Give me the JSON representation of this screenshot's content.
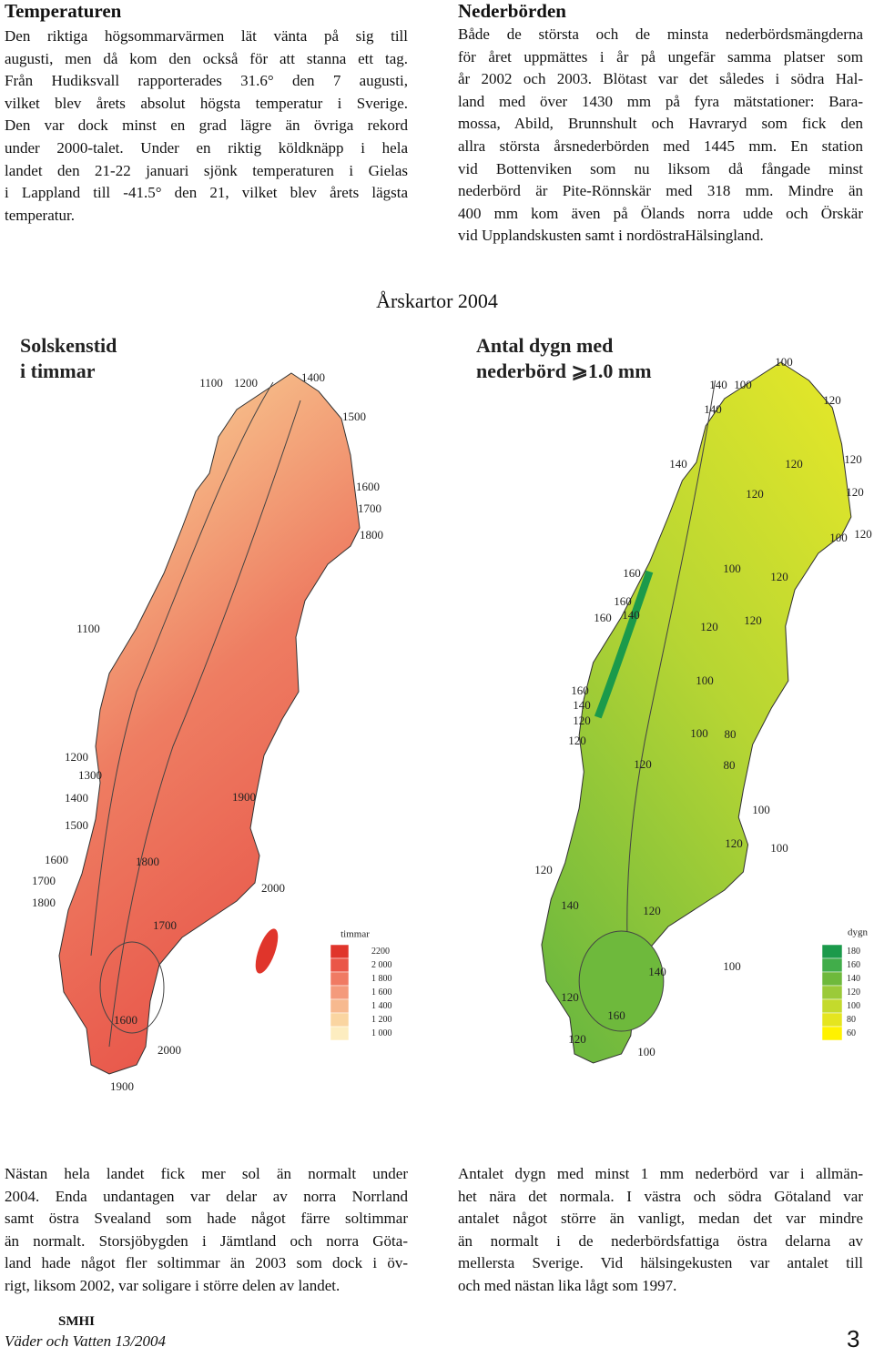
{
  "temperature": {
    "title": "Temperaturen",
    "lines": [
      "Den riktiga högsommarvärmen lät vänta på sig till",
      "augusti, men då kom den också för att stanna ett tag.",
      "Från Hudiksvall rapporterades 31.6° den 7 augusti,",
      "vilket blev årets absolut högsta temperatur i Sverige.",
      "Den var dock minst en grad lägre än övriga rekord",
      "under 2000-talet. Under en riktig köldknäpp i hela",
      "landet den 21-22 januari sjönk temperaturen i Gielas",
      "i Lappland till -41.5° den 21, vilket blev årets lägsta",
      "temperatur."
    ]
  },
  "precipitation": {
    "title": "Nederbörden",
    "lines": [
      "Både de största och de minsta nederbördsmängderna",
      "för året uppmättes i år på ungefär samma platser som",
      "år 2002 och 2003. Blötast var det således i södra Hal-",
      "land med över 1430 mm på fyra mätstationer: Bara-",
      "mossa, Abild, Brunnshult och Havraryd som fick den",
      "allra största årsnederbörden med 1445 mm. En station",
      "vid Bottenviken som nu liksom då fångade minst",
      "nederbörd är Pite-Rönnskär med 318 mm. Mindre än",
      "400 mm kom även på Ölands norra udde och Örskär",
      "vid Upplandskusten samt i nordöstraHälsingland."
    ]
  },
  "maps_title": "Årskartor 2004",
  "sun_map": {
    "title_lines": [
      "Solskenstid",
      "i timmar"
    ],
    "contour_labels": [
      "1100",
      "1200",
      "1400",
      "1500",
      "1600",
      "1700",
      "1800",
      "1100",
      "1200",
      "1300",
      "1400",
      "1900",
      "1500",
      "1600",
      "1800",
      "1700",
      "2000",
      "1800",
      "1700",
      "1600",
      "2000",
      "1900"
    ],
    "legend": {
      "unit": "timmar",
      "items": [
        {
          "label": "2200",
          "color": "#e0352b"
        },
        {
          "label": "2 000",
          "color": "#ea5647"
        },
        {
          "label": "1 800",
          "color": "#f07a63"
        },
        {
          "label": "1 600",
          "color": "#f49a7c"
        },
        {
          "label": "1 400",
          "color": "#f7b98f"
        },
        {
          "label": "1 200",
          "color": "#fad5a1"
        },
        {
          "label": "1 000",
          "color": "#fdedc0"
        }
      ]
    }
  },
  "rain_map": {
    "title_lines": [
      "Antal dygn med",
      "nederbörd ⩾1.0 mm"
    ],
    "contour_labels": [
      "100",
      "140",
      "100",
      "120",
      "140",
      "140",
      "120",
      "120",
      "120",
      "120",
      "100",
      "120",
      "160",
      "100",
      "120",
      "160",
      "160",
      "140",
      "120",
      "120",
      "100",
      "160",
      "140",
      "120",
      "120",
      "100",
      "80",
      "120",
      "80",
      "100",
      "120",
      "100",
      "120",
      "140",
      "120",
      "140",
      "100",
      "120",
      "160",
      "120",
      "100"
    ],
    "legend": {
      "unit": "dygn",
      "items": [
        {
          "label": "180",
          "color": "#1b9a4b"
        },
        {
          "label": "160",
          "color": "#41ad4a"
        },
        {
          "label": "140",
          "color": "#6eb93c"
        },
        {
          "label": "120",
          "color": "#9bca39"
        },
        {
          "label": "100",
          "color": "#c4da2c"
        },
        {
          "label": "80",
          "color": "#e5e51f"
        },
        {
          "label": "60",
          "color": "#fff200"
        }
      ]
    }
  },
  "sun_text": {
    "lines": [
      "Nästan hela landet fick mer sol än normalt under",
      "2004. Enda undantagen var delar av norra Norrland",
      "samt östra Svealand som hade något färre soltimmar",
      "än normalt. Storsjöbygden i Jämtland och norra Göta-",
      "land hade något fler soltimmar än 2003 som dock i öv-",
      "rigt, liksom 2002, var soligare i större delen av landet."
    ]
  },
  "rain_text": {
    "lines": [
      "Antalet dygn med minst 1 mm nederbörd var i allmän-",
      "het nära det normala. I västra och södra Götaland var",
      "antalet något större än vanligt, medan det var mindre",
      "än normalt i de nederbördsfattiga östra delarna av",
      "mellersta Sverige. Vid hälsingekusten var antalet till",
      "och med nästan lika lågt som 1997."
    ]
  },
  "footer": {
    "org": "SMHI",
    "publication": "Väder och Vatten 13/2004",
    "page": "3"
  }
}
